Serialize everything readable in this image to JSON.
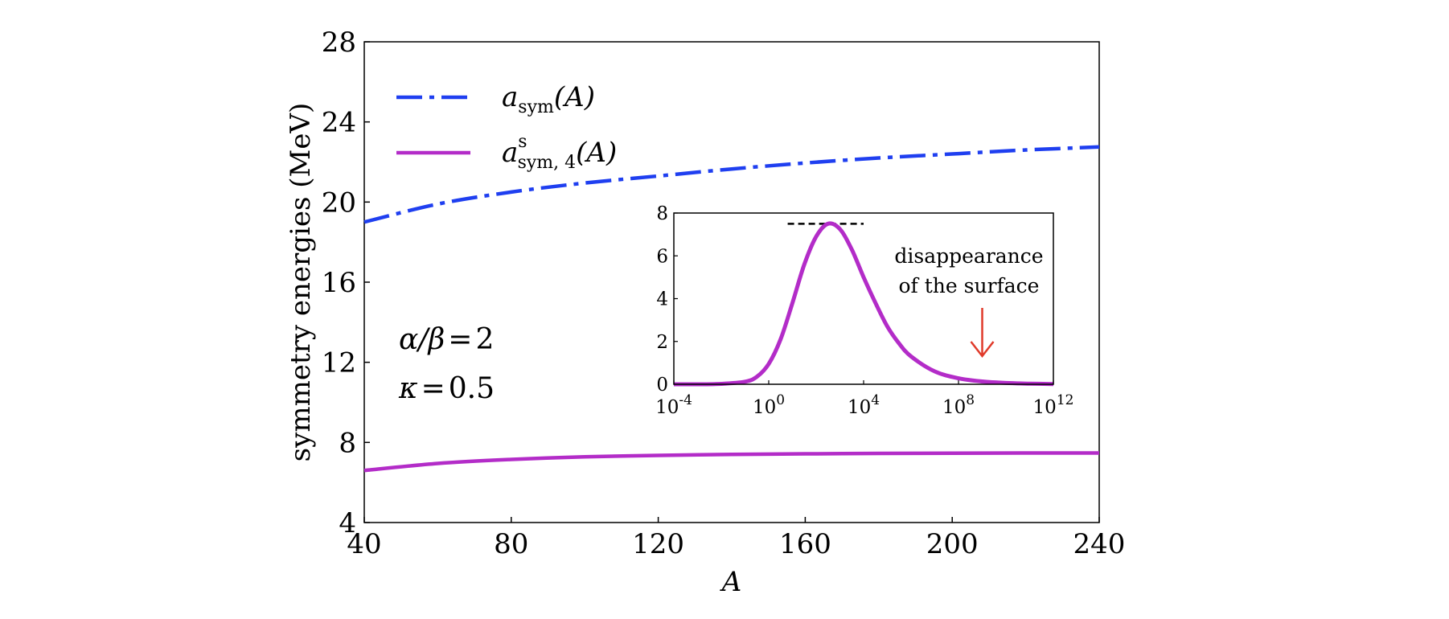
{
  "chart_data": [
    {
      "type": "line",
      "xlabel": "A",
      "ylabel": "symmetry energies (MeV)",
      "xlim": [
        40,
        240
      ],
      "ylim": [
        4,
        28
      ],
      "x_ticks": [
        "40",
        "80",
        "120",
        "160",
        "200",
        "240"
      ],
      "y_ticks": [
        "4",
        "8",
        "12",
        "16",
        "20",
        "24",
        "28"
      ],
      "legend_position": "top-left",
      "series": [
        {
          "name": "a_sym(A)",
          "color": "#1f3ff0",
          "style": "dash-dot",
          "x": [
            40,
            60,
            80,
            100,
            120,
            140,
            160,
            180,
            200,
            220,
            240
          ],
          "y": [
            19.0,
            19.9,
            20.5,
            20.95,
            21.3,
            21.65,
            21.95,
            22.2,
            22.4,
            22.6,
            22.75
          ]
        },
        {
          "name": "a^s_sym,4(A)",
          "color": "#b32cc8",
          "style": "solid",
          "x": [
            40,
            60,
            80,
            100,
            120,
            140,
            160,
            180,
            200,
            220,
            240
          ],
          "y": [
            6.6,
            6.95,
            7.15,
            7.28,
            7.35,
            7.4,
            7.43,
            7.45,
            7.46,
            7.47,
            7.47
          ]
        }
      ],
      "annotations": {
        "line1_lhs": "α/β",
        "line1_eq": "=",
        "line1_rhs": "2",
        "line2_lhs": "κ",
        "line2_eq": "=",
        "line2_rhs": "0.5"
      },
      "legend": {
        "item1_main": "a",
        "item1_sub": "sym",
        "item1_arg": "(A)",
        "item2_main": "a",
        "item2_sup": "s",
        "item2_sub": "sym, 4",
        "item2_arg": "(A)"
      }
    },
    {
      "type": "line",
      "xscale": "log",
      "xlim_exponent": [
        -4,
        12
      ],
      "ylim": [
        0,
        8
      ],
      "x_tick_base": "10",
      "x_tick_exponents": [
        "-4",
        "0",
        "4",
        "8",
        "12"
      ],
      "y_ticks": [
        "0",
        "2",
        "4",
        "6",
        "8"
      ],
      "peak_reference": {
        "y": 7.5,
        "x_exponent_range": [
          0.8,
          4.0
        ],
        "style": "dashed",
        "color": "#000000"
      },
      "series": [
        {
          "color": "#b32cc8",
          "style": "solid",
          "x_exponent": [
            -4,
            -3,
            -2,
            -1,
            -0.5,
            0,
            0.5,
            1,
            1.5,
            2,
            2.5,
            3,
            3.5,
            4,
            4.5,
            5,
            5.5,
            6,
            7,
            8,
            9,
            10,
            11,
            12
          ],
          "y": [
            0,
            0,
            0.02,
            0.12,
            0.35,
            0.95,
            2.1,
            3.8,
            5.6,
            6.9,
            7.5,
            7.25,
            6.3,
            5.0,
            3.8,
            2.7,
            1.9,
            1.3,
            0.6,
            0.28,
            0.13,
            0.06,
            0.03,
            0.01
          ]
        }
      ],
      "annotation": {
        "line1": "disappearance",
        "line2": "of the surface",
        "arrow_color": "#e03a2a",
        "arrow_x_exponent": 9.0
      }
    }
  ]
}
